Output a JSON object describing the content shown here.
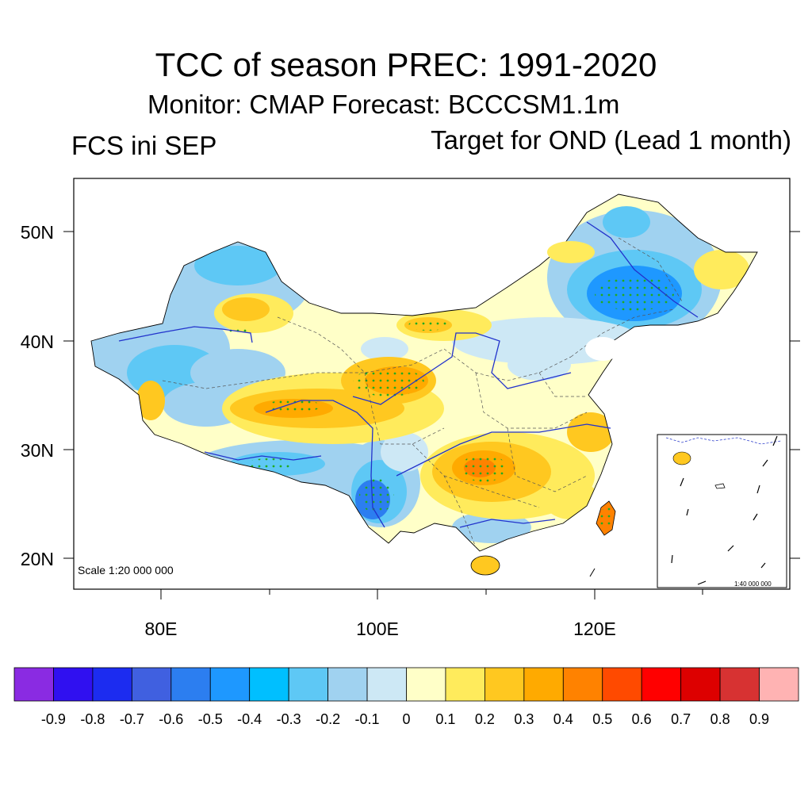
{
  "title": "TCC of season PREC: 1991-2020",
  "subtitle": "Monitor: CMAP   Forecast: BCCCSM1.1m",
  "left_label": "FCS ini SEP",
  "right_label": "Target for OND (Lead 1 month)",
  "map": {
    "lat_labels": [
      "50N",
      "40N",
      "30N",
      "20N"
    ],
    "lon_labels": [
      "80E",
      "100E",
      "120E"
    ],
    "scale_text": "Scale 1:20 000 000",
    "inset_scale_text": "1:40 000 000"
  },
  "colorbar": {
    "labels": [
      "-0.9",
      "-0.8",
      "-0.7",
      "-0.6",
      "-0.5",
      "-0.4",
      "-0.3",
      "-0.2",
      "-0.1",
      "0",
      "0.1",
      "0.2",
      "0.3",
      "0.4",
      "0.5",
      "0.6",
      "0.7",
      "0.8",
      "0.9"
    ],
    "colors": [
      "#8a2be2",
      "#3010f0",
      "#1c2cf0",
      "#4060e0",
      "#2c7ef0",
      "#1e98ff",
      "#00bfff",
      "#5ec8f5",
      "#a0d2f0",
      "#cde8f5",
      "#ffffc8",
      "#ffeb5c",
      "#ffc820",
      "#ffaa00",
      "#ff8200",
      "#ff4a00",
      "#ff0000",
      "#dd0000",
      "#d73232",
      "#ffb3b3"
    ]
  }
}
